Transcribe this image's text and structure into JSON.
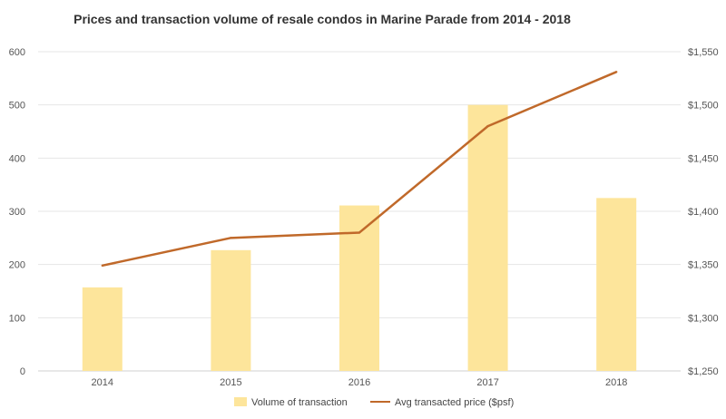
{
  "chart_data": {
    "type": "bar",
    "title": "Prices and transaction  volume of resale condos  in Marine Parade from 2014 - 2018",
    "categories": [
      "2014",
      "2015",
      "2016",
      "2017",
      "2018"
    ],
    "series": [
      {
        "name": "Volume of transaction",
        "kind": "bar",
        "axis": "left",
        "color": "#fde59b",
        "values": [
          157,
          227,
          311,
          500,
          325
        ]
      },
      {
        "name": "Avg transacted price ($psf)",
        "kind": "line",
        "axis": "right",
        "color": "#c0692a",
        "values": [
          1349,
          1375,
          1380,
          1480,
          1531
        ]
      }
    ],
    "y_left": {
      "min": 0,
      "max": 600,
      "ticks": [
        "0",
        "100",
        "200",
        "300",
        "400",
        "500",
        "600"
      ]
    },
    "y_right": {
      "min": 1250,
      "max": 1550,
      "ticks": [
        "$1,250",
        "$1,300",
        "$1,350",
        "$1,400",
        "$1,450",
        "$1,500",
        "$1,550"
      ]
    },
    "grid": true,
    "legend_position": "bottom"
  }
}
